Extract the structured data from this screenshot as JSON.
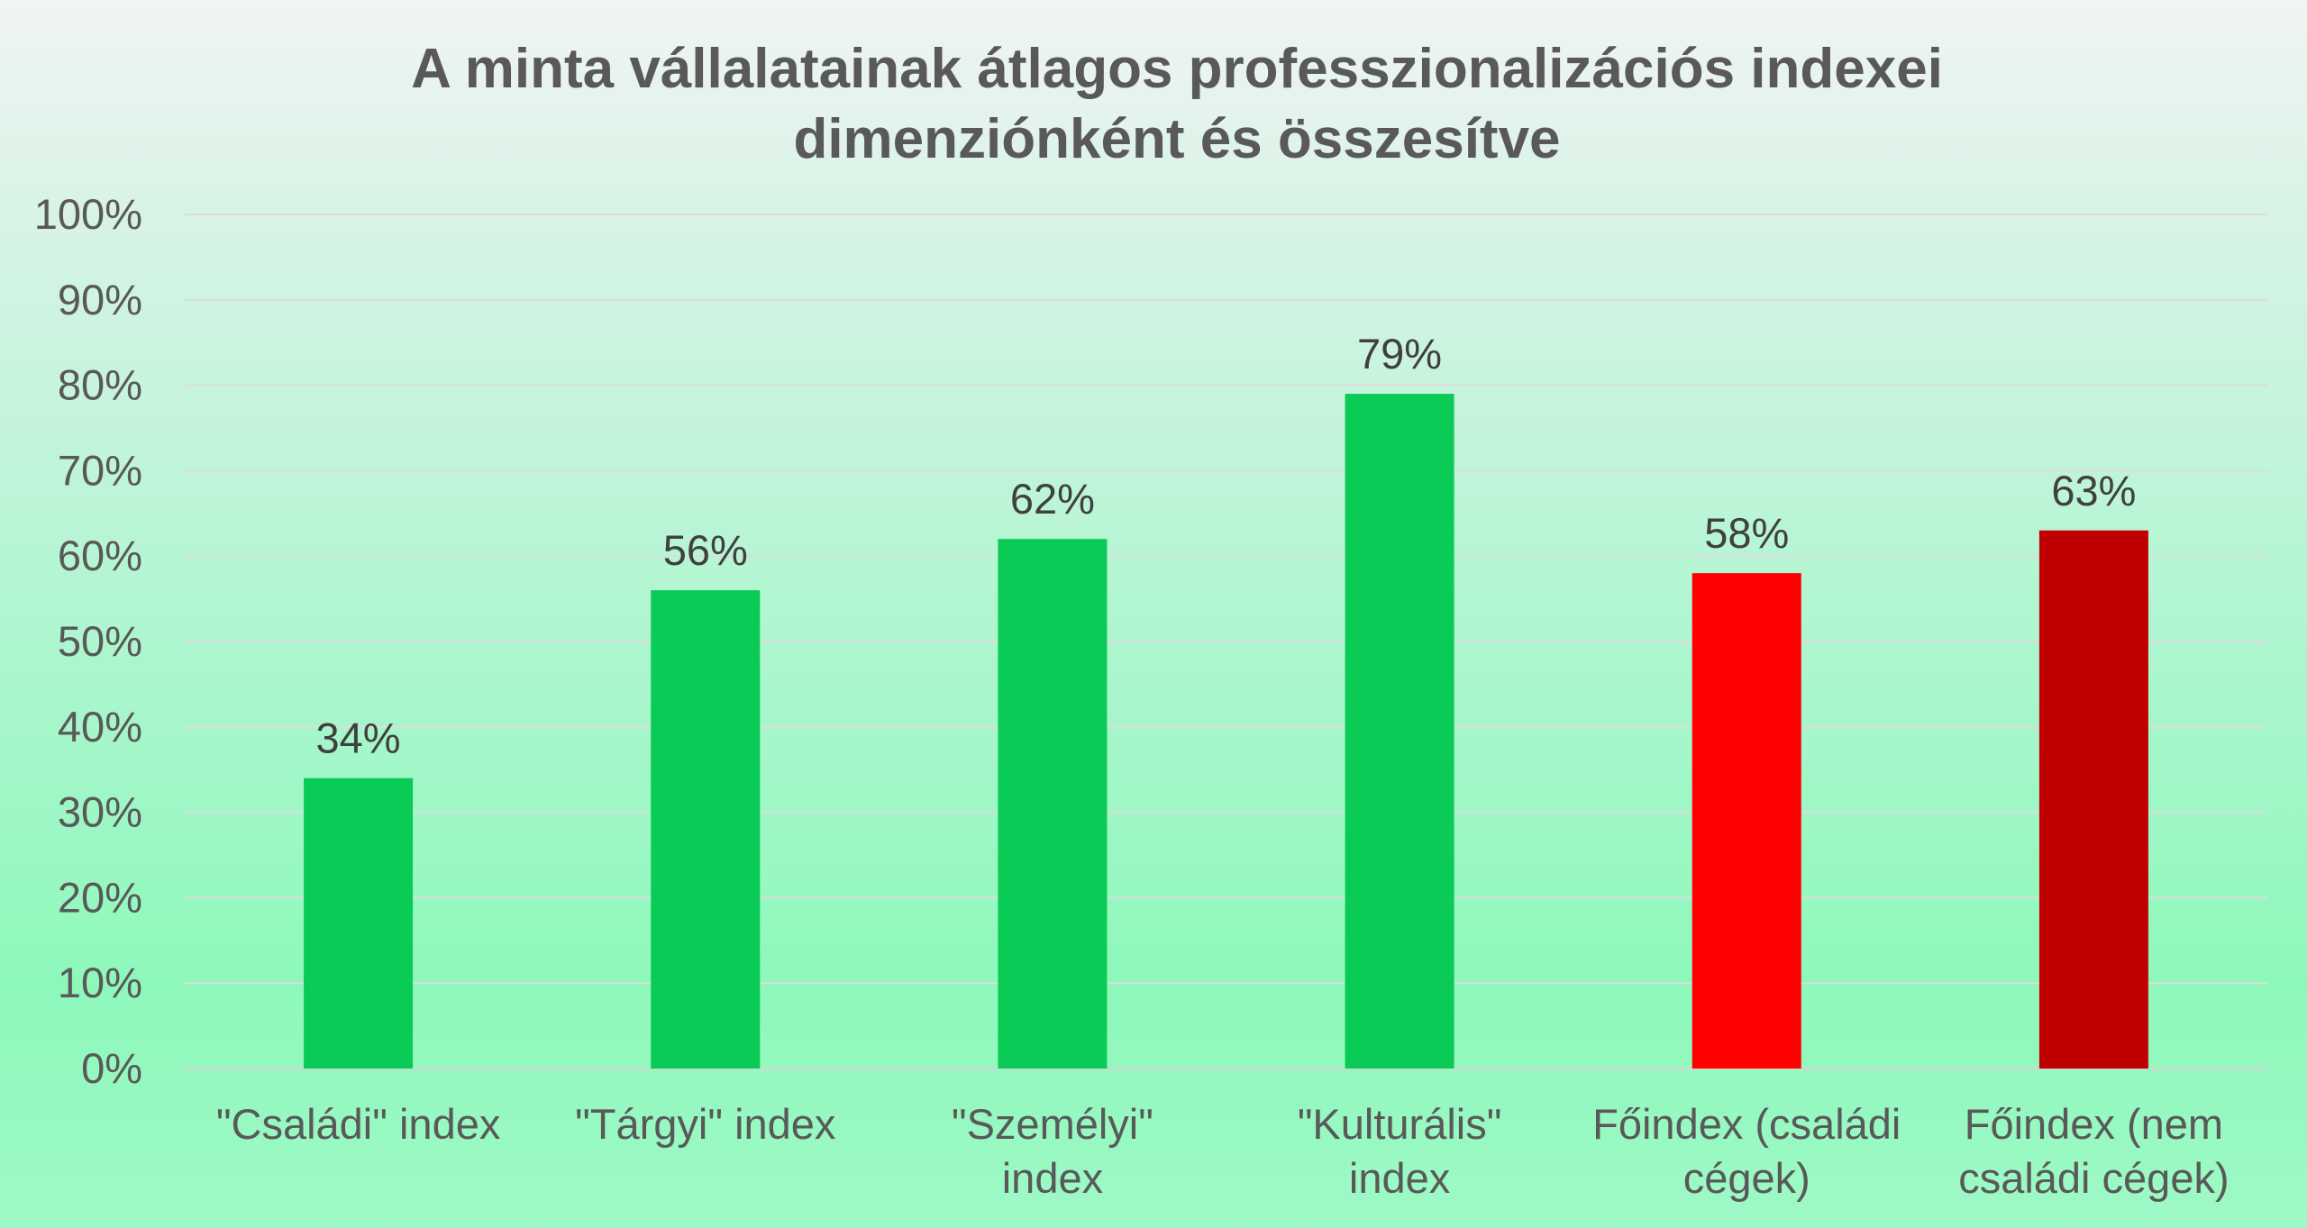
{
  "chart_data": {
    "type": "bar",
    "title": "A minta vállalatainak átlagos professzionalizációs indexei dimenziónként és összesítve",
    "title_lines": [
      "A minta vállalatainak átlagos professzionalizációs indexei",
      "dimenziónként és összesítve"
    ],
    "categories": [
      "\"Családi\" index",
      "\"Tárgyi\" index",
      "\"Személyi\" index",
      "\"Kulturális\" index",
      "Főindex (családi cégek)",
      "Főindex (nem családi cégek)"
    ],
    "category_label_lines": [
      [
        "\"Családi\" index"
      ],
      [
        "\"Tárgyi\" index"
      ],
      [
        "\"Személyi\"",
        "index"
      ],
      [
        "\"Kulturális\"",
        "index"
      ],
      [
        "Főindex (családi",
        "cégek)"
      ],
      [
        "Főindex (nem",
        "családi cégek)"
      ]
    ],
    "values": [
      34,
      56,
      62,
      79,
      58,
      63
    ],
    "data_labels": [
      "34%",
      "56%",
      "62%",
      "79%",
      "58%",
      "63%"
    ],
    "bar_colors": [
      "#0acb55",
      "#0acb55",
      "#0acb55",
      "#0acb55",
      "#ff0000",
      "#c00000"
    ],
    "y_ticks": [
      0,
      10,
      20,
      30,
      40,
      50,
      60,
      70,
      80,
      90,
      100
    ],
    "y_tick_labels": [
      "0%",
      "10%",
      "20%",
      "30%",
      "40%",
      "50%",
      "60%",
      "70%",
      "80%",
      "90%",
      "100%"
    ],
    "xlabel": "",
    "ylabel": "",
    "ylim": [
      0,
      100
    ],
    "grid": true,
    "legend": "none"
  }
}
